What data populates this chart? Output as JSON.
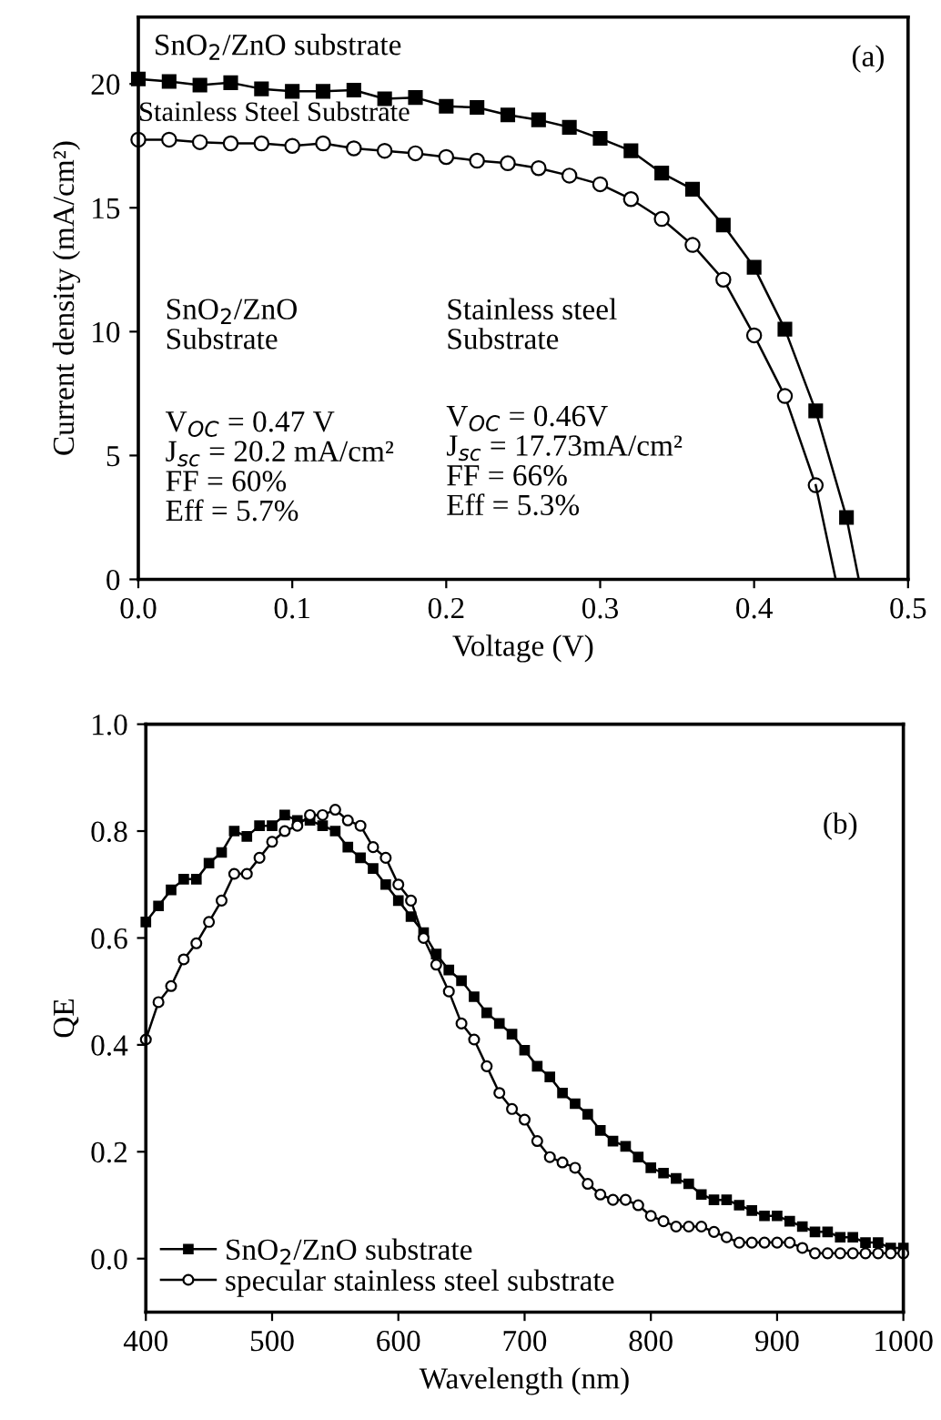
{
  "chart_data": [
    {
      "type": "line",
      "xlabel": "Voltage (V)",
      "ylabel": "Current density (mA/cm²)",
      "xlim": [
        0,
        0.5
      ],
      "ylim": [
        0,
        22.7
      ],
      "xticks": [
        {
          "value": 0,
          "label": "0.0"
        },
        0.1,
        0.2,
        0.3,
        0.4,
        0.5
      ],
      "yticks": [
        0,
        5,
        10,
        15,
        20
      ],
      "grid": false,
      "legend": false,
      "line_style": "solid",
      "annotations": [
        "SnO$_{2}$/ZnO substrate",
        "Stainless Steel Substrate",
        "(a)",
        "SnO$_{2}$/ZnO\nSubstrate",
        "V$_{OC}$ = 0.47 V\nJ$_{sc}$ = 20.2 mA/cm²\nFF = 60%\nEff = 5.7%",
        "Stainless steel\nSubstrate",
        "V$_{OC}$ = 0.46V\nJ$_{sc}$ = 17.73mA/cm²\nFF = 66%\nEff = 5.3%"
      ],
      "series": [
        {
          "color": "#000000",
          "marker": "square",
          "x": [
            0,
            0.02,
            0.04,
            0.06,
            0.08,
            0.1,
            0.12,
            0.14,
            0.16,
            0.18,
            0.2,
            0.22,
            0.24,
            0.26,
            0.28,
            0.3,
            0.32,
            0.34,
            0.36,
            0.38,
            0.4,
            0.42,
            0.44,
            0.46
          ],
          "values": [
            20.2,
            20.1,
            19.95,
            20.05,
            19.8,
            19.7,
            19.7,
            19.75,
            19.4,
            19.45,
            19.1,
            19.05,
            18.75,
            18.55,
            18.25,
            17.8,
            17.3,
            16.4,
            15.75,
            14.3,
            12.6,
            10.1,
            6.8,
            2.5
          ]
        },
        {
          "color": "#000000",
          "marker": "none",
          "x": [
            0.46,
            0.468
          ],
          "values": [
            2.5,
            0
          ]
        },
        {
          "color": "#000000",
          "marker": "circle",
          "x": [
            0,
            0.02,
            0.04,
            0.06,
            0.08,
            0.1,
            0.12,
            0.14,
            0.16,
            0.18,
            0.2,
            0.22,
            0.24,
            0.26,
            0.28,
            0.3,
            0.32,
            0.34,
            0.36,
            0.38,
            0.4,
            0.42,
            0.44
          ],
          "values": [
            17.75,
            17.75,
            17.65,
            17.6,
            17.6,
            17.5,
            17.6,
            17.4,
            17.3,
            17.2,
            17.05,
            16.9,
            16.8,
            16.6,
            16.3,
            15.95,
            15.35,
            14.55,
            13.5,
            12.1,
            9.85,
            7.4,
            3.8
          ]
        },
        {
          "color": "#000000",
          "marker": "none",
          "x": [
            0.44,
            0.453
          ],
          "values": [
            3.8,
            0
          ]
        }
      ]
    },
    {
      "type": "line",
      "xlabel": "Wavelength (nm)",
      "ylabel": "QE",
      "xlim": [
        400,
        1000
      ],
      "ylim": [
        -0.1,
        1.0
      ],
      "xticks": [
        400,
        500,
        600,
        700,
        800,
        900,
        1000
      ],
      "yticks": [
        {
          "value": 0,
          "label": "0.0"
        },
        0.2,
        0.4,
        0.6,
        0.8,
        {
          "value": 1,
          "label": "1.0"
        }
      ],
      "grid": false,
      "legend": "bottom left",
      "line_style": "solid",
      "annotations": [
        "(b)"
      ],
      "x": [
        400,
        410,
        420,
        430,
        440,
        450,
        460,
        470,
        480,
        490,
        500,
        510,
        520,
        530,
        540,
        550,
        560,
        570,
        580,
        590,
        600,
        610,
        620,
        630,
        640,
        650,
        660,
        670,
        680,
        690,
        700,
        710,
        720,
        730,
        740,
        750,
        760,
        770,
        780,
        790,
        800,
        810,
        820,
        830,
        840,
        850,
        860,
        870,
        880,
        890,
        900,
        910,
        920,
        930,
        940,
        950,
        960,
        970,
        980,
        990,
        1000
      ],
      "series": [
        {
          "name": "SnO$_{2}$/ZnO substrate",
          "color": "#000000",
          "marker": "square",
          "values": [
            0.63,
            0.66,
            0.69,
            0.71,
            0.71,
            0.74,
            0.76,
            0.8,
            0.79,
            0.81,
            0.81,
            0.83,
            0.82,
            0.82,
            0.81,
            0.8,
            0.77,
            0.75,
            0.73,
            0.7,
            0.67,
            0.64,
            0.61,
            0.57,
            0.54,
            0.52,
            0.49,
            0.46,
            0.44,
            0.42,
            0.39,
            0.36,
            0.34,
            0.31,
            0.29,
            0.27,
            0.24,
            0.22,
            0.21,
            0.19,
            0.17,
            0.16,
            0.15,
            0.14,
            0.12,
            0.11,
            0.11,
            0.1,
            0.09,
            0.08,
            0.08,
            0.07,
            0.06,
            0.05,
            0.05,
            0.04,
            0.04,
            0.03,
            0.03,
            0.02,
            0.02
          ]
        },
        {
          "name": "specular stainless steel substrate",
          "color": "#000000",
          "marker": "circle",
          "values": [
            0.41,
            0.48,
            0.51,
            0.56,
            0.59,
            0.63,
            0.67,
            0.72,
            0.72,
            0.75,
            0.78,
            0.8,
            0.81,
            0.83,
            0.83,
            0.84,
            0.82,
            0.81,
            0.77,
            0.75,
            0.7,
            0.67,
            0.6,
            0.55,
            0.5,
            0.44,
            0.41,
            0.36,
            0.31,
            0.28,
            0.26,
            0.22,
            0.19,
            0.18,
            0.17,
            0.14,
            0.12,
            0.11,
            0.11,
            0.1,
            0.08,
            0.07,
            0.06,
            0.06,
            0.06,
            0.05,
            0.04,
            0.03,
            0.03,
            0.03,
            0.03,
            0.03,
            0.02,
            0.01,
            0.01,
            0.01,
            0.01,
            0.01,
            0.01,
            0.01,
            0.01
          ]
        }
      ]
    }
  ]
}
